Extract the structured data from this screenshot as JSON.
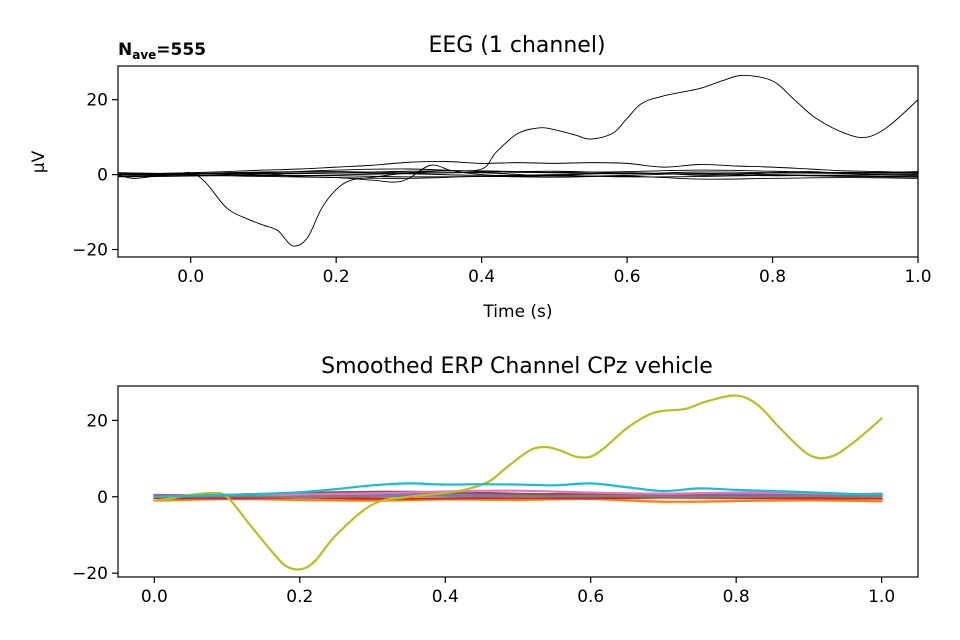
{
  "chart_data": [
    {
      "type": "line",
      "title": "EEG (1 channel)",
      "annotation": "N_ave=",
      "annotation_main": "N",
      "annotation_sub": "ave",
      "annotation_tail": "=",
      "annotation_digits": "555",
      "xlabel": "Time (s)",
      "ylabel": "µV",
      "xlim": [
        -0.1,
        1.0
      ],
      "ylim": [
        -22,
        29
      ],
      "xticks": [
        "0.0",
        "0.2",
        "0.4",
        "0.6",
        "0.8",
        "1.0"
      ],
      "yticks": [
        "−20",
        "0",
        "20"
      ],
      "grid": false,
      "line_color": "#000000",
      "series": [
        {
          "x": [
            -0.1,
            -0.08,
            -0.05,
            -0.02,
            0.0,
            0.02,
            0.05,
            0.08,
            0.1,
            0.12,
            0.14,
            0.16,
            0.18,
            0.2,
            0.22,
            0.25,
            0.3,
            0.35,
            0.4,
            0.42,
            0.45,
            0.48,
            0.5,
            0.53,
            0.55,
            0.58,
            0.6,
            0.62,
            0.65,
            0.7,
            0.73,
            0.76,
            0.8,
            0.83,
            0.86,
            0.9,
            0.93,
            0.96,
            1.0
          ],
          "y": [
            0,
            -1,
            -0.5,
            0,
            0.5,
            -2,
            -9,
            -12,
            -13.5,
            -15,
            -19,
            -17,
            -9,
            -4,
            -1.5,
            -0.7,
            0.5,
            1,
            1.5,
            6,
            11,
            12.5,
            12,
            10.5,
            9.5,
            11,
            15,
            19,
            21,
            23,
            25,
            26.5,
            25,
            20,
            15,
            11,
            10,
            13,
            20
          ]
        },
        {
          "x": [
            -0.1,
            0.0,
            0.05,
            0.1,
            0.15,
            0.2,
            0.25,
            0.3,
            0.35,
            0.4,
            0.45,
            0.5,
            0.55,
            0.6,
            0.65,
            0.7,
            0.75,
            0.8,
            0.85,
            0.9,
            0.95,
            1.0
          ],
          "y": [
            0,
            0.5,
            0.8,
            1.2,
            1.5,
            2,
            2.5,
            3.3,
            3.5,
            3,
            3.2,
            3,
            3.2,
            3,
            2,
            2.7,
            2.3,
            2,
            1.5,
            1,
            0.8,
            0.5
          ]
        },
        {
          "x": [
            -0.1,
            0.0,
            0.05,
            0.1,
            0.15,
            0.2,
            0.25,
            0.28,
            0.3,
            0.33,
            0.36,
            0.4,
            0.45,
            0.5,
            0.55,
            0.6,
            0.65,
            0.7,
            0.75,
            0.8,
            0.85,
            0.9,
            0.95,
            1.0
          ],
          "y": [
            -0.5,
            0,
            0.5,
            0.2,
            -0.5,
            -0.8,
            -1.5,
            -2,
            -1,
            2.5,
            1,
            0,
            -0.5,
            -0.3,
            0.2,
            0.5,
            0.3,
            -0.2,
            0,
            0.5,
            0.8,
            0.3,
            0,
            -0.3
          ]
        },
        {
          "x": [
            -0.1,
            0.0,
            0.1,
            0.2,
            0.3,
            0.4,
            0.5,
            0.6,
            0.7,
            0.8,
            0.9,
            1.0
          ],
          "y": [
            0.3,
            0.2,
            0.5,
            1.2,
            1.5,
            0.8,
            0.5,
            0.2,
            0.7,
            0.5,
            0.3,
            0.2
          ]
        },
        {
          "x": [
            -0.1,
            0.0,
            0.1,
            0.2,
            0.3,
            0.4,
            0.5,
            0.6,
            0.7,
            0.8,
            0.9,
            1.0
          ],
          "y": [
            -0.3,
            -0.2,
            -0.5,
            -0.8,
            -1,
            -0.5,
            -0.7,
            -0.4,
            -1.2,
            -1,
            -0.8,
            -1
          ]
        },
        {
          "x": [
            -0.1,
            0.0,
            0.1,
            0.2,
            0.3,
            0.4,
            0.5,
            0.6,
            0.7,
            0.8,
            0.9,
            1.0
          ],
          "y": [
            0,
            0.1,
            0.3,
            0.5,
            0.2,
            -0.2,
            0,
            0.3,
            0.1,
            -0.3,
            -0.1,
            0
          ]
        },
        {
          "x": [
            -0.1,
            0.0,
            0.1,
            0.2,
            0.3,
            0.4,
            0.5,
            0.6,
            0.7,
            0.8,
            0.9,
            1.0
          ],
          "y": [
            0.5,
            0.3,
            0.7,
            0.8,
            0.5,
            0.6,
            0.9,
            0.4,
            0.2,
            0.4,
            0.6,
            0.5
          ]
        },
        {
          "x": [
            -0.1,
            0.0,
            0.1,
            0.2,
            0.3,
            0.4,
            0.5,
            0.6,
            0.7,
            0.8,
            0.9,
            1.0
          ],
          "y": [
            -0.6,
            -0.4,
            -0.2,
            -0.3,
            -0.6,
            -0.5,
            -0.2,
            -0.6,
            -0.5,
            -0.2,
            -0.5,
            -0.7
          ]
        },
        {
          "x": [
            -0.1,
            0.0,
            0.1,
            0.2,
            0.3,
            0.4,
            0.5,
            0.6,
            0.7,
            0.8,
            0.9,
            1.0
          ],
          "y": [
            0.2,
            -0.2,
            0.1,
            0.4,
            0.9,
            1.0,
            0.6,
            0.8,
            1.2,
            0.9,
            0.5,
            0.8
          ]
        },
        {
          "x": [
            -0.1,
            0.0,
            0.1,
            0.2,
            0.3,
            0.4,
            0.5,
            0.6,
            0.7,
            0.8,
            0.9,
            1.0
          ],
          "y": [
            0,
            0.4,
            -0.3,
            -0.1,
            0.3,
            0.5,
            -0.4,
            -0.2,
            0.3,
            0,
            -0.3,
            -0.5
          ]
        }
      ]
    },
    {
      "type": "line",
      "title": "Smoothed ERP Channel CPz vehicle",
      "xlabel": "",
      "ylabel": "",
      "xlim": [
        -0.05,
        1.05
      ],
      "ylim": [
        -21,
        29
      ],
      "xticks": [
        "0.0",
        "0.2",
        "0.4",
        "0.6",
        "0.8",
        "1.0"
      ],
      "yticks": [
        "−20",
        "0",
        "20"
      ],
      "grid": false,
      "series": [
        {
          "color": "#1f77b4",
          "x": [
            0,
            0.1,
            0.2,
            0.3,
            0.4,
            0.5,
            0.6,
            0.7,
            0.8,
            0.9,
            1.0
          ],
          "y": [
            0.3,
            0.2,
            0.4,
            0.6,
            0.3,
            0.4,
            0.5,
            0.3,
            0.2,
            0.3,
            0.2
          ]
        },
        {
          "color": "#ff7f0e",
          "x": [
            0,
            0.1,
            0.2,
            0.3,
            0.4,
            0.5,
            0.6,
            0.7,
            0.8,
            0.9,
            1.0
          ],
          "y": [
            -1,
            -0.6,
            -0.8,
            -1,
            -0.7,
            -0.8,
            -0.6,
            -1.3,
            -1.1,
            -0.9,
            -1.2
          ]
        },
        {
          "color": "#2ca02c",
          "x": [
            0,
            0.1,
            0.2,
            0.3,
            0.4,
            0.5,
            0.6,
            0.7,
            0.8,
            0.9,
            1.0
          ],
          "y": [
            0,
            0.2,
            0.3,
            0.1,
            0.4,
            0.2,
            0.1,
            0.3,
            0.2,
            0.1,
            0.2
          ]
        },
        {
          "color": "#d62728",
          "x": [
            0,
            0.1,
            0.2,
            0.3,
            0.4,
            0.5,
            0.6,
            0.7,
            0.8,
            0.9,
            1.0
          ],
          "y": [
            -0.3,
            -0.4,
            -0.2,
            -0.5,
            -0.4,
            -0.3,
            -0.4,
            -0.2,
            -0.3,
            -0.4,
            -0.5
          ]
        },
        {
          "color": "#9467bd",
          "x": [
            0,
            0.1,
            0.2,
            0.3,
            0.4,
            0.5,
            0.6,
            0.7,
            0.8,
            0.9,
            1.0
          ],
          "y": [
            0.5,
            0.3,
            0.6,
            0.8,
            0.7,
            0.6,
            0.9,
            0.8,
            0.7,
            0.6,
            0.8
          ]
        },
        {
          "color": "#8c564b",
          "x": [
            0,
            0.1,
            0.2,
            0.3,
            0.4,
            0.5,
            0.6,
            0.7,
            0.8,
            0.9,
            1.0
          ],
          "y": [
            0.2,
            0.5,
            1,
            1.3,
            1.2,
            0.8,
            0.6,
            0.4,
            0.2,
            0.3,
            0.2
          ]
        },
        {
          "color": "#e377c2",
          "x": [
            0,
            0.1,
            0.2,
            0.3,
            0.4,
            0.5,
            0.6,
            0.7,
            0.8,
            0.9,
            1.0
          ],
          "y": [
            0,
            0.3,
            0.6,
            0.9,
            1.4,
            1.6,
            1.1,
            0.8,
            1.1,
            0.9,
            0.6
          ]
        },
        {
          "color": "#7f7f7f",
          "x": [
            0,
            0.1,
            0.2,
            0.3,
            0.4,
            0.5,
            0.6,
            0.7,
            0.8,
            0.9,
            1.0
          ],
          "y": [
            0.1,
            0.2,
            -0.1,
            0.2,
            0.3,
            0,
            0.2,
            0.1,
            0,
            0.2,
            0.1
          ]
        },
        {
          "color": "#bcbd22",
          "x": [
            0,
            0.02,
            0.05,
            0.08,
            0.1,
            0.13,
            0.16,
            0.18,
            0.2,
            0.22,
            0.25,
            0.3,
            0.35,
            0.4,
            0.43,
            0.46,
            0.48,
            0.5,
            0.52,
            0.54,
            0.56,
            0.58,
            0.6,
            0.62,
            0.65,
            0.68,
            0.7,
            0.73,
            0.76,
            0.8,
            0.83,
            0.86,
            0.9,
            0.93,
            0.96,
            1.0
          ],
          "y": [
            -1,
            -0.5,
            0.5,
            1,
            0,
            -7,
            -14,
            -18,
            -19,
            -17,
            -10,
            -2,
            0,
            1,
            2,
            4,
            7,
            10,
            12.5,
            13,
            12,
            10.5,
            10.5,
            13,
            18,
            21.5,
            22.5,
            23,
            25,
            26.5,
            24,
            18,
            11,
            10.5,
            14,
            20.5
          ]
        },
        {
          "color": "#17becf",
          "x": [
            0,
            0.1,
            0.15,
            0.2,
            0.25,
            0.3,
            0.35,
            0.4,
            0.45,
            0.5,
            0.55,
            0.6,
            0.65,
            0.7,
            0.75,
            0.8,
            0.85,
            0.9,
            0.95,
            1.0
          ],
          "y": [
            0,
            0.5,
            0.8,
            1.2,
            2,
            3,
            3.5,
            3.2,
            3.3,
            3.2,
            3,
            3.5,
            2.5,
            1.5,
            2.2,
            1.8,
            1.5,
            1.2,
            0.8,
            0.6
          ]
        }
      ]
    }
  ]
}
